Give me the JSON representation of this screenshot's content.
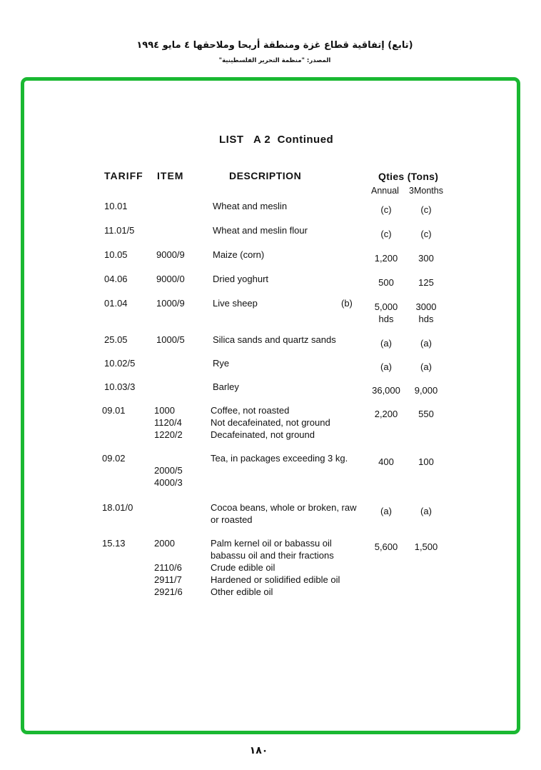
{
  "header": {
    "title": "(تابع) إتفاقية قطاع غزة ومنطقة أريحا وملاحقها ٤ مايو ١٩٩٤",
    "source": "المصدر: \"منظمة التحرير الفلسطينية\""
  },
  "frame_color": "#1ab832",
  "list_title": "LIST   A 2  Continued",
  "columns": {
    "tariff": "TARIFF",
    "item": "ITEM",
    "description": "DESCRIPTION",
    "qties": "Qties (Tons)",
    "annual": "Annual",
    "months": "3Months"
  },
  "rows": [
    {
      "tariff": "10.01",
      "items": [],
      "desc": [
        "Wheat and meslin"
      ],
      "note": "",
      "annual": [
        "(c)"
      ],
      "months": [
        "(c)"
      ]
    },
    {
      "tariff": "11.01/5",
      "items": [],
      "desc": [
        "Wheat and meslin flour"
      ],
      "note": "",
      "annual": [
        "(c)"
      ],
      "months": [
        "(c)"
      ]
    },
    {
      "tariff": "10.05",
      "items": [
        "9000/9"
      ],
      "desc": [
        "Maize (corn)"
      ],
      "note": "",
      "annual": [
        "1,200"
      ],
      "months": [
        "300"
      ]
    },
    {
      "tariff": "04.06",
      "items": [
        "9000/0"
      ],
      "desc": [
        "Dried yoghurt"
      ],
      "note": "",
      "annual": [
        "500"
      ],
      "months": [
        "125"
      ]
    },
    {
      "tariff": "01.04",
      "items": [
        "1000/9"
      ],
      "desc": [
        "Live sheep"
      ],
      "note": "(b)",
      "annual": [
        "5,000",
        "hds"
      ],
      "months": [
        "3000",
        "hds"
      ]
    },
    {
      "tariff": "25.05",
      "items": [
        "1000/5"
      ],
      "desc": [
        "Silica sands and quartz sands"
      ],
      "note": "",
      "annual": [
        "(a)"
      ],
      "months": [
        "(a)"
      ]
    },
    {
      "tariff": "10.02/5",
      "items": [],
      "desc": [
        "Rye"
      ],
      "note": "",
      "annual": [
        "(a)"
      ],
      "months": [
        "(a)"
      ]
    },
    {
      "tariff": "10.03/3",
      "items": [],
      "desc": [
        "Barley"
      ],
      "note": "",
      "annual": [
        "36,000"
      ],
      "months": [
        "9,000"
      ]
    },
    {
      "tariff": "09.01",
      "items": [
        "1000",
        "1120/4",
        "1220/2"
      ],
      "desc": [
        "Coffee, not roasted",
        "Not decafeinated, not ground",
        "Decafeinated, not ground"
      ],
      "note": "",
      "annual": [
        "2,200"
      ],
      "months": [
        "550"
      ]
    },
    {
      "tariff": "09.02",
      "items": [
        "",
        "2000/5",
        "4000/3"
      ],
      "desc": [
        "Tea, in packages exceeding 3 kg."
      ],
      "note": "",
      "annual": [
        "400"
      ],
      "months": [
        "100"
      ]
    },
    {
      "tariff": "18.01/0",
      "items": [],
      "desc": [
        "Cocoa beans, whole or broken, raw",
        "or roasted"
      ],
      "note": "",
      "annual": [
        "(a)"
      ],
      "months": [
        "(a)"
      ]
    },
    {
      "tariff": "15.13",
      "items": [
        "2000",
        "",
        "2110/6",
        "2911/7",
        "2921/6"
      ],
      "desc": [
        "Palm kernel oil or babassu oil",
        " babassu oil and their fractions",
        "Crude edible oil",
        "Hardened or solidified edible oil",
        "Other edible oil"
      ],
      "note": "",
      "annual": [
        "5,600"
      ],
      "months": [
        "1,500"
      ]
    }
  ],
  "page_number": "١٨٠"
}
